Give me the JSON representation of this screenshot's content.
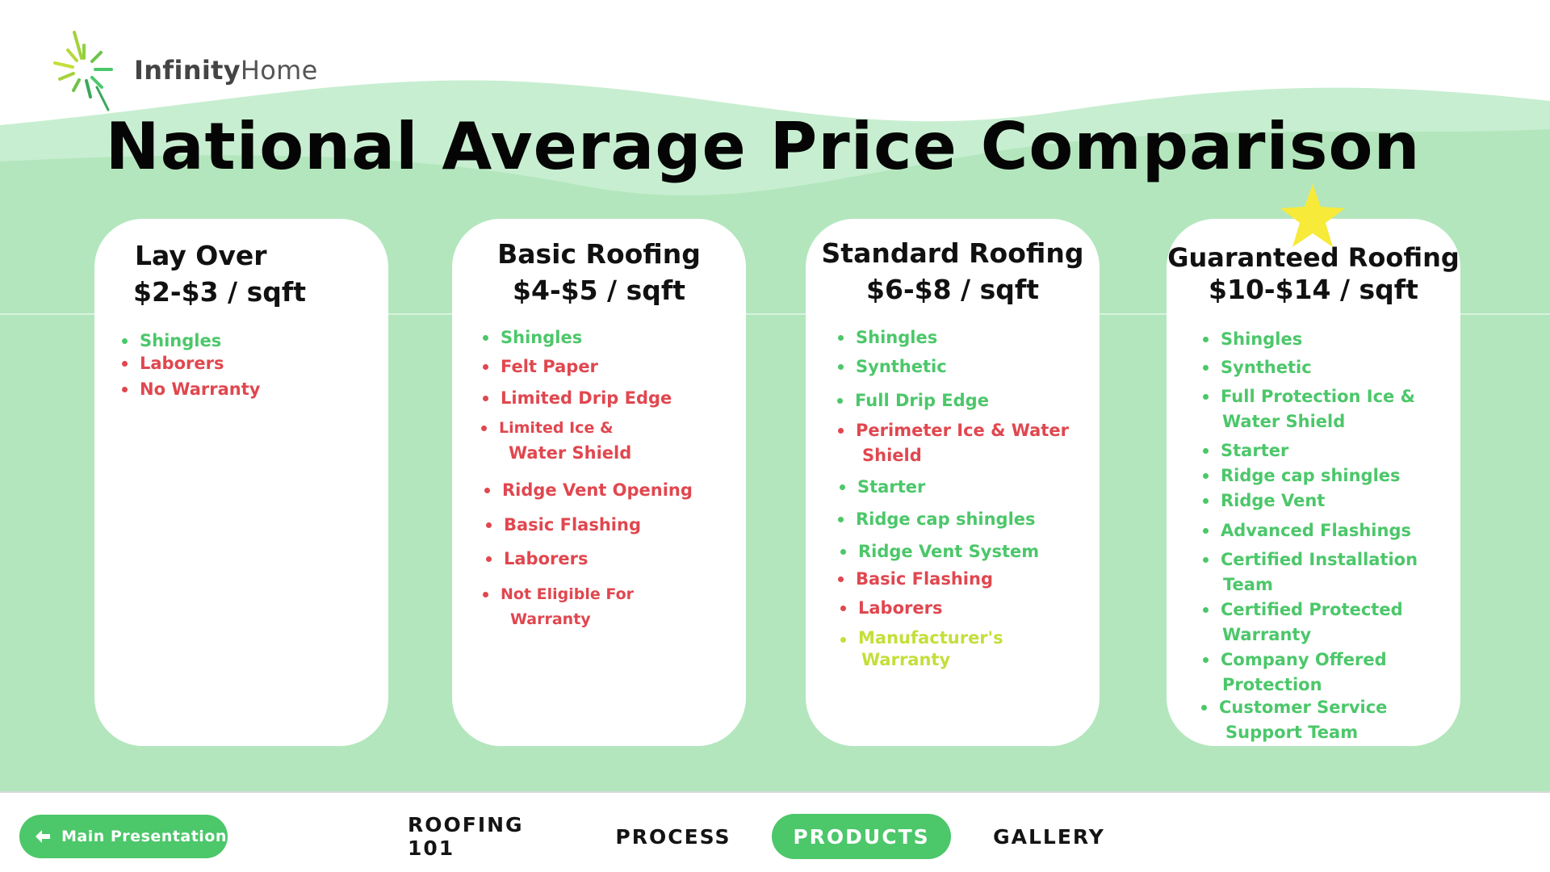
{
  "brand": {
    "name_bold": "Infinity",
    "name_light": "Home",
    "logo_icon": "sunburst-logo-icon"
  },
  "title": "National Average Price Comparison",
  "colors": {
    "accent_green": "#4cc76a",
    "included": "#4cc76a",
    "excluded": "#e0474f",
    "highlight": "#c3df3a",
    "background_green": "#b3e6bd",
    "star": "#f7ea39"
  },
  "cards": [
    {
      "name": "Lay Over",
      "price": "$2-$3 / sqft",
      "features": [
        {
          "text": "Shingles",
          "status": "included"
        },
        {
          "text": "Laborers",
          "status": "excluded"
        },
        {
          "text": "No Warranty",
          "status": "excluded"
        }
      ]
    },
    {
      "name": "Basic Roofing",
      "price": "$4-$5 / sqft",
      "features": [
        {
          "text": "Shingles",
          "status": "included"
        },
        {
          "text": "Felt Paper",
          "status": "excluded"
        },
        {
          "text": "Limited Drip Edge",
          "status": "excluded"
        },
        {
          "text": "Limited Ice &",
          "text2": "Water Shield",
          "status": "excluded"
        },
        {
          "text": "Ridge Vent Opening",
          "status": "excluded"
        },
        {
          "text": "Basic Flashing",
          "status": "excluded"
        },
        {
          "text": "Laborers",
          "status": "excluded"
        },
        {
          "text": "Not Eligible For",
          "text2": "Warranty",
          "status": "excluded"
        }
      ]
    },
    {
      "name": "Standard Roofing",
      "price": "$6-$8 / sqft",
      "features": [
        {
          "text": "Shingles",
          "status": "included"
        },
        {
          "text": "Synthetic",
          "status": "included"
        },
        {
          "text": "Full Drip Edge",
          "status": "included"
        },
        {
          "text": "Perimeter Ice & Water",
          "text2": "Shield",
          "status": "excluded"
        },
        {
          "text": "Starter",
          "status": "included"
        },
        {
          "text": "Ridge cap shingles",
          "status": "included"
        },
        {
          "text": "Ridge Vent System",
          "status": "included"
        },
        {
          "text": "Basic Flashing",
          "status": "excluded"
        },
        {
          "text": "Laborers",
          "status": "excluded"
        },
        {
          "text": "Manufacturer's",
          "text2": "Warranty",
          "status": "highlight"
        }
      ]
    },
    {
      "name": "Guaranteed Roofing",
      "price": "$10-$14 / sqft",
      "badge_icon": "star-icon",
      "features": [
        {
          "text": "Shingles",
          "status": "included"
        },
        {
          "text": "Synthetic",
          "status": "included"
        },
        {
          "text": "Full Protection Ice &",
          "text2": "Water Shield",
          "status": "included"
        },
        {
          "text": "Starter",
          "status": "included"
        },
        {
          "text": "Ridge cap shingles",
          "status": "included"
        },
        {
          "text": "Ridge Vent",
          "status": "included"
        },
        {
          "text": "Advanced Flashings",
          "status": "included"
        },
        {
          "text": "Certified Installation",
          "text2": "Team",
          "status": "included"
        },
        {
          "text": "Certified Protected",
          "text2": "Warranty",
          "status": "included"
        },
        {
          "text": "Company Offered",
          "text2": "Protection",
          "status": "included"
        },
        {
          "text": "Customer Service",
          "text2": "Support Team",
          "status": "included"
        }
      ]
    }
  ],
  "bottom_nav": {
    "back_button": {
      "label": "Main Presentation",
      "icon": "arrow-left-icon"
    },
    "items": [
      {
        "label": "ROOFING 101",
        "active": false
      },
      {
        "label": "PROCESS",
        "active": false
      },
      {
        "label": "PRODUCTS",
        "active": true
      },
      {
        "label": "GALLERY",
        "active": false
      }
    ]
  }
}
